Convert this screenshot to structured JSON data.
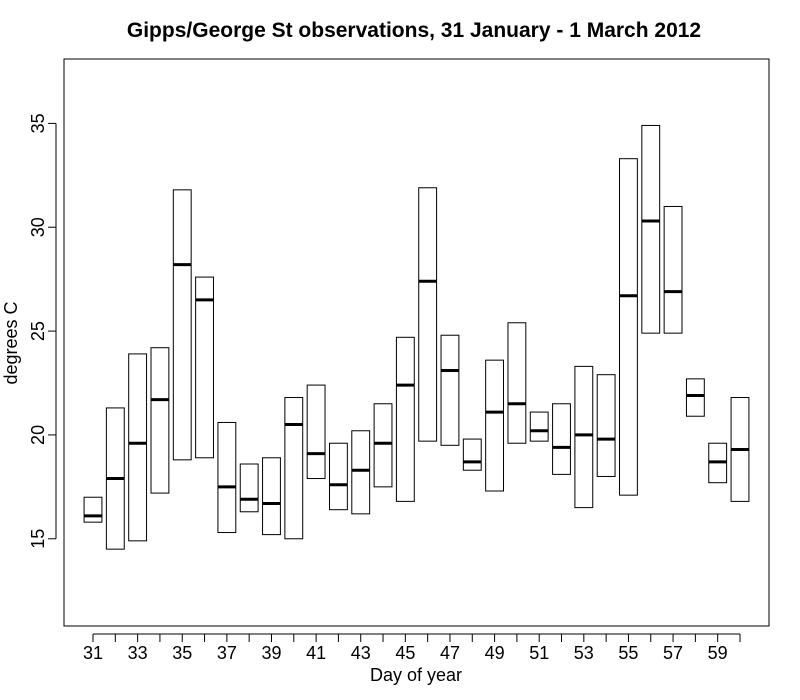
{
  "chart_data": {
    "type": "box",
    "title": "Gipps/George St observations, 31 January - 1 March 2012",
    "xlabel": "Day of year",
    "ylabel": "degrees C",
    "ylim": [
      10.8,
      38.1
    ],
    "xlim": [
      29.7,
      61.3
    ],
    "yticks": [
      15,
      20,
      25,
      30,
      35
    ],
    "xticks": [
      31,
      32,
      33,
      34,
      35,
      36,
      37,
      38,
      39,
      40,
      41,
      42,
      43,
      44,
      45,
      46,
      47,
      48,
      49,
      50,
      51,
      52,
      53,
      54,
      55,
      56,
      57,
      58,
      59,
      60
    ],
    "xtick_labels": [
      "31",
      "",
      "33",
      "",
      "35",
      "",
      "37",
      "",
      "39",
      "",
      "41",
      "",
      "43",
      "",
      "45",
      "",
      "47",
      "",
      "49",
      "",
      "51",
      "",
      "53",
      "",
      "55",
      "",
      "57",
      "",
      "59",
      ""
    ],
    "grid": false,
    "legend": "none",
    "boxes": [
      {
        "day": 31,
        "min": 15.8,
        "median": 16.1,
        "max": 17.0
      },
      {
        "day": 32,
        "min": 14.5,
        "median": 17.9,
        "max": 21.3
      },
      {
        "day": 33,
        "min": 14.9,
        "median": 19.6,
        "max": 23.9
      },
      {
        "day": 34,
        "min": 17.2,
        "median": 21.7,
        "max": 24.2
      },
      {
        "day": 35,
        "min": 18.8,
        "median": 28.2,
        "max": 31.8
      },
      {
        "day": 36,
        "min": 18.9,
        "median": 26.5,
        "max": 27.6
      },
      {
        "day": 37,
        "min": 15.3,
        "median": 17.5,
        "max": 20.6
      },
      {
        "day": 38,
        "min": 16.3,
        "median": 16.9,
        "max": 18.6
      },
      {
        "day": 39,
        "min": 15.2,
        "median": 16.7,
        "max": 18.9
      },
      {
        "day": 40,
        "min": 15.0,
        "median": 20.5,
        "max": 21.8
      },
      {
        "day": 41,
        "min": 17.9,
        "median": 19.1,
        "max": 22.4
      },
      {
        "day": 42,
        "min": 16.4,
        "median": 17.6,
        "max": 19.6
      },
      {
        "day": 43,
        "min": 16.2,
        "median": 18.3,
        "max": 20.2
      },
      {
        "day": 44,
        "min": 17.5,
        "median": 19.6,
        "max": 21.5
      },
      {
        "day": 45,
        "min": 16.8,
        "median": 22.4,
        "max": 24.7
      },
      {
        "day": 46,
        "min": 19.7,
        "median": 27.4,
        "max": 31.9
      },
      {
        "day": 47,
        "min": 19.5,
        "median": 23.1,
        "max": 24.8
      },
      {
        "day": 48,
        "min": 18.3,
        "median": 18.7,
        "max": 19.8
      },
      {
        "day": 49,
        "min": 17.3,
        "median": 21.1,
        "max": 23.6
      },
      {
        "day": 50,
        "min": 19.6,
        "median": 21.5,
        "max": 25.4
      },
      {
        "day": 51,
        "min": 19.7,
        "median": 20.2,
        "max": 21.1
      },
      {
        "day": 52,
        "min": 18.1,
        "median": 19.4,
        "max": 21.5
      },
      {
        "day": 53,
        "min": 16.5,
        "median": 20.0,
        "max": 23.3
      },
      {
        "day": 54,
        "min": 18.0,
        "median": 19.8,
        "max": 22.9
      },
      {
        "day": 55,
        "min": 17.1,
        "median": 26.7,
        "max": 33.3
      },
      {
        "day": 56,
        "min": 24.9,
        "median": 30.3,
        "max": 34.9
      },
      {
        "day": 57,
        "min": 24.9,
        "median": 26.9,
        "max": 31.0
      },
      {
        "day": 58,
        "min": 20.9,
        "median": 21.9,
        "max": 22.7
      },
      {
        "day": 59,
        "min": 17.7,
        "median": 18.7,
        "max": 19.6
      },
      {
        "day": 60,
        "min": 16.8,
        "median": 19.3,
        "max": 21.8
      }
    ]
  }
}
